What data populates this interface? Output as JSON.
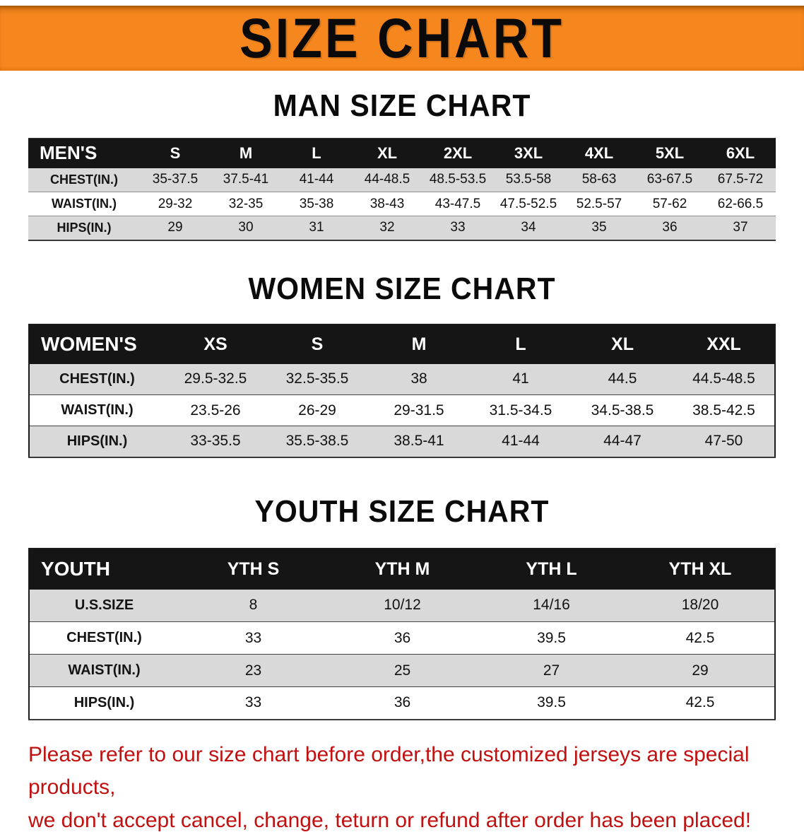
{
  "banner": {
    "title": "SIZE CHART"
  },
  "colors": {
    "banner_orange": "#F6871F",
    "table_header_black": "#151515",
    "row_stripe_gray": "#D9D9D9",
    "disclaimer_red": "#C01010"
  },
  "sections": {
    "men": {
      "heading": "MAN SIZE CHART",
      "table": {
        "header": [
          "MEN'S",
          "S",
          "M",
          "L",
          "XL",
          "2XL",
          "3XL",
          "4XL",
          "5XL",
          "6XL"
        ],
        "rows": [
          [
            "CHEST(IN.)",
            "35-37.5",
            "37.5-41",
            "41-44",
            "44-48.5",
            "48.5-53.5",
            "53.5-58",
            "58-63",
            "63-67.5",
            "67.5-72"
          ],
          [
            "WAIST(IN.)",
            "29-32",
            "32-35",
            "35-38",
            "38-43",
            "43-47.5",
            "47.5-52.5",
            "52.5-57",
            "57-62",
            "62-66.5"
          ],
          [
            "HIPS(IN.)",
            "29",
            "30",
            "31",
            "32",
            "33",
            "34",
            "35",
            "36",
            "37"
          ]
        ]
      }
    },
    "women": {
      "heading": "WOMEN SIZE CHART",
      "table": {
        "header": [
          "WOMEN'S",
          "XS",
          "S",
          "M",
          "L",
          "XL",
          "XXL"
        ],
        "rows": [
          [
            "CHEST(IN.)",
            "29.5-32.5",
            "32.5-35.5",
            "38",
            "41",
            "44.5",
            "44.5-48.5"
          ],
          [
            "WAIST(IN.)",
            "23.5-26",
            "26-29",
            "29-31.5",
            "31.5-34.5",
            "34.5-38.5",
            "38.5-42.5"
          ],
          [
            "HIPS(IN.)",
            "33-35.5",
            "35.5-38.5",
            "38.5-41",
            "41-44",
            "44-47",
            "47-50"
          ]
        ]
      }
    },
    "youth": {
      "heading": "YOUTH SIZE CHART",
      "table": {
        "header": [
          "YOUTH",
          "YTH S",
          "YTH M",
          "YTH L",
          "YTH XL"
        ],
        "rows": [
          [
            "U.S.SIZE",
            "8",
            "10/12",
            "14/16",
            "18/20"
          ],
          [
            "CHEST(IN.)",
            "33",
            "36",
            "39.5",
            "42.5"
          ],
          [
            "WAIST(IN.)",
            "23",
            "25",
            "27",
            "29"
          ],
          [
            "HIPS(IN.)",
            "33",
            "36",
            "39.5",
            "42.5"
          ]
        ]
      }
    }
  },
  "footer": {
    "line1": "Please refer to our size chart before order,the customized jerseys are special products,",
    "line2": "we don't accept cancel, change, teturn or refund after order has been placed!"
  }
}
